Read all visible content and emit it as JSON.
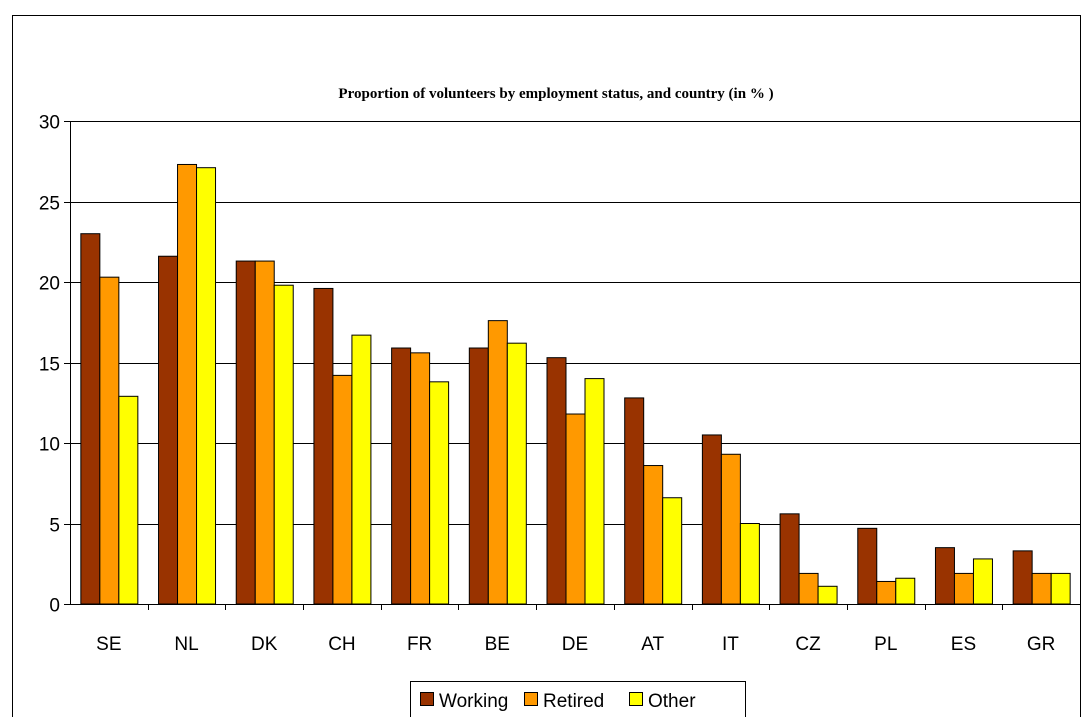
{
  "chart_data": {
    "type": "bar",
    "title": "Proportion of volunteers by employment status, and country (in % )",
    "xlabel": "",
    "ylabel": "",
    "ylim": [
      0,
      30
    ],
    "yticks": [
      "0",
      "5",
      "10",
      "15",
      "20",
      "25",
      "30"
    ],
    "categories": [
      "SE",
      "NL",
      "DK",
      "CH",
      "FR",
      "BE",
      "DE",
      "AT",
      "IT",
      "CZ",
      "PL",
      "ES",
      "GR"
    ],
    "series": [
      {
        "name": "Working",
        "color": "#993300",
        "values": [
          23.0,
          21.6,
          21.3,
          19.6,
          15.9,
          15.9,
          15.3,
          12.8,
          10.5,
          5.6,
          4.7,
          3.5,
          3.3
        ]
      },
      {
        "name": "Retired",
        "color": "#ff9900",
        "values": [
          20.3,
          27.3,
          21.3,
          14.2,
          15.6,
          17.6,
          11.8,
          8.6,
          9.3,
          1.9,
          1.4,
          1.9,
          1.9
        ]
      },
      {
        "name": "Other",
        "color": "#ffff00",
        "values": [
          12.9,
          27.1,
          19.8,
          16.7,
          13.8,
          16.2,
          14.0,
          6.6,
          5.0,
          1.1,
          1.6,
          2.8,
          1.9
        ]
      }
    ],
    "grid": true,
    "legend_position": "bottom"
  }
}
